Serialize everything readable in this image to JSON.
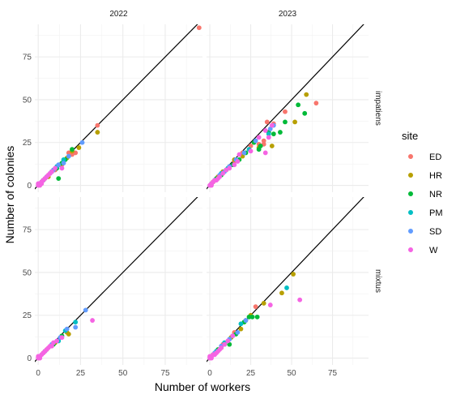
{
  "chart_data": {
    "type": "scatter",
    "xlabel": "Number of workers",
    "ylabel": "Number of colonies",
    "xlim": [
      -2,
      97
    ],
    "ylim": [
      -4,
      94
    ],
    "x_ticks": [
      0,
      25,
      50,
      75
    ],
    "y_ticks": [
      0,
      25,
      50,
      75
    ],
    "grid": true,
    "reference_line": "y = x",
    "facet_columns": [
      "2022",
      "2023"
    ],
    "facet_rows": [
      "impatiens",
      "mixtus"
    ],
    "legend": {
      "title": "site",
      "position": "right",
      "entries": [
        {
          "name": "ED",
          "color": "#F8766D"
        },
        {
          "name": "HR",
          "color": "#B79F00"
        },
        {
          "name": "NR",
          "color": "#00BA38"
        },
        {
          "name": "PM",
          "color": "#00BFC4"
        },
        {
          "name": "SD",
          "color": "#619CFF"
        },
        {
          "name": "W",
          "color": "#F564E3"
        }
      ]
    },
    "panels": [
      {
        "year": "2022",
        "species": "impatiens",
        "series": [
          {
            "name": "ED",
            "points": [
              [
                95,
                92
              ],
              [
                35,
                35
              ],
              [
                22,
                19
              ],
              [
                20,
                18
              ],
              [
                18,
                19
              ],
              [
                14,
                12
              ],
              [
                10,
                9
              ],
              [
                6,
                6
              ],
              [
                4,
                4
              ],
              [
                2,
                2
              ]
            ]
          },
          {
            "name": "HR",
            "points": [
              [
                35,
                31
              ],
              [
                24,
                22
              ],
              [
                20,
                20
              ],
              [
                17,
                16
              ],
              [
                13,
                12
              ],
              [
                9,
                9
              ],
              [
                6,
                5
              ],
              [
                3,
                3
              ],
              [
                1,
                1
              ]
            ]
          },
          {
            "name": "NR",
            "points": [
              [
                20,
                21
              ],
              [
                12,
                4
              ],
              [
                16,
                15
              ],
              [
                14,
                13
              ],
              [
                11,
                10
              ],
              [
                8,
                8
              ],
              [
                5,
                5
              ],
              [
                3,
                3
              ],
              [
                1,
                1
              ]
            ]
          },
          {
            "name": "PM",
            "points": [
              [
                15,
                15
              ],
              [
                11,
                11
              ],
              [
                8,
                8
              ],
              [
                5,
                5
              ],
              [
                3,
                3
              ],
              [
                1,
                1
              ]
            ]
          },
          {
            "name": "SD",
            "points": [
              [
                26,
                25
              ],
              [
                18,
                17
              ],
              [
                15,
                13
              ],
              [
                12,
                12
              ],
              [
                9,
                9
              ],
              [
                7,
                7
              ],
              [
                5,
                5
              ],
              [
                2,
                2
              ],
              [
                1,
                1
              ]
            ]
          },
          {
            "name": "W",
            "points": [
              [
                14,
                10
              ],
              [
                10,
                10
              ],
              [
                8,
                8
              ],
              [
                7,
                7
              ],
              [
                6,
                6
              ],
              [
                5,
                5
              ],
              [
                4,
                4
              ],
              [
                3,
                3
              ],
              [
                2,
                2
              ],
              [
                1,
                1
              ],
              [
                0,
                0
              ],
              [
                1,
                0
              ],
              [
                0,
                1
              ],
              [
                2,
                1
              ]
            ]
          }
        ]
      },
      {
        "year": "2023",
        "species": "impatiens",
        "series": [
          {
            "name": "ED",
            "points": [
              [
                65,
                48
              ],
              [
                46,
                43
              ],
              [
                39,
                36
              ],
              [
                35,
                37
              ],
              [
                33,
                26
              ],
              [
                33,
                24
              ],
              [
                30,
                24
              ],
              [
                25,
                23
              ],
              [
                20,
                19
              ],
              [
                15,
                14
              ],
              [
                10,
                9
              ],
              [
                5,
                5
              ],
              [
                2,
                2
              ]
            ]
          },
          {
            "name": "HR",
            "points": [
              [
                59,
                53
              ],
              [
                52,
                37
              ],
              [
                38,
                23
              ],
              [
                30,
                22
              ],
              [
                20,
                17
              ],
              [
                15,
                15
              ],
              [
                12,
                11
              ],
              [
                8,
                8
              ],
              [
                5,
                5
              ],
              [
                2,
                2
              ]
            ]
          },
          {
            "name": "NR",
            "points": [
              [
                54,
                47
              ],
              [
                58,
                42
              ],
              [
                46,
                37
              ],
              [
                43,
                31
              ],
              [
                39,
                30
              ],
              [
                36,
                31
              ],
              [
                31,
                23
              ],
              [
                30,
                21
              ],
              [
                27,
                25
              ],
              [
                22,
                19
              ],
              [
                18,
                15
              ],
              [
                14,
                12
              ],
              [
                10,
                9
              ],
              [
                7,
                6
              ],
              [
                4,
                4
              ],
              [
                1,
                1
              ]
            ]
          },
          {
            "name": "PM",
            "points": [
              [
                36,
                30
              ],
              [
                24,
                21
              ],
              [
                16,
                15
              ],
              [
                11,
                10
              ],
              [
                7,
                7
              ],
              [
                3,
                3
              ]
            ]
          },
          {
            "name": "SD",
            "points": [
              [
                39,
                35
              ],
              [
                37,
                33
              ],
              [
                28,
                26
              ],
              [
                21,
                19
              ],
              [
                16,
                15
              ],
              [
                12,
                11
              ],
              [
                9,
                8
              ],
              [
                6,
                6
              ],
              [
                3,
                3
              ]
            ]
          },
          {
            "name": "W",
            "points": [
              [
                38,
                35
              ],
              [
                34,
                32
              ],
              [
                36,
                28
              ],
              [
                34,
                19
              ],
              [
                30,
                28
              ],
              [
                25,
                20
              ],
              [
                18,
                18
              ],
              [
                17,
                14
              ],
              [
                15,
                12
              ],
              [
                12,
                10
              ],
              [
                10,
                9
              ],
              [
                8,
                7
              ],
              [
                6,
                5
              ],
              [
                5,
                4
              ],
              [
                4,
                3
              ],
              [
                3,
                3
              ],
              [
                2,
                2
              ],
              [
                1,
                1
              ],
              [
                0,
                0
              ],
              [
                1,
                0
              ]
            ]
          }
        ]
      },
      {
        "year": "2022",
        "species": "mixtus",
        "series": [
          {
            "name": "ED",
            "points": [
              [
                3,
                3
              ],
              [
                1,
                1
              ]
            ]
          },
          {
            "name": "HR",
            "points": [
              [
                18,
                14
              ],
              [
                17,
                15
              ],
              [
                10,
                9
              ],
              [
                5,
                5
              ]
            ]
          },
          {
            "name": "NR",
            "points": [
              [
                14,
                13
              ],
              [
                9,
                8
              ],
              [
                4,
                4
              ]
            ]
          },
          {
            "name": "PM",
            "points": [
              [
                22,
                21
              ],
              [
                16,
                16
              ],
              [
                12,
                10
              ]
            ]
          },
          {
            "name": "SD",
            "points": [
              [
                28,
                28
              ],
              [
                22,
                18
              ],
              [
                17,
                17
              ],
              [
                13,
                12
              ],
              [
                8,
                8
              ],
              [
                4,
                4
              ]
            ]
          },
          {
            "name": "W",
            "points": [
              [
                32,
                22
              ],
              [
                14,
                12
              ],
              [
                11,
                10
              ],
              [
                9,
                9
              ],
              [
                8,
                7
              ],
              [
                7,
                7
              ],
              [
                6,
                6
              ],
              [
                5,
                5
              ],
              [
                4,
                4
              ],
              [
                3,
                3
              ],
              [
                2,
                2
              ],
              [
                1,
                1
              ],
              [
                0,
                0
              ],
              [
                1,
                0
              ],
              [
                0,
                1
              ]
            ]
          }
        ]
      },
      {
        "year": "2023",
        "species": "mixtus",
        "series": [
          {
            "name": "ED",
            "points": [
              [
                28,
                30
              ],
              [
                22,
                22
              ],
              [
                15,
                15
              ],
              [
                8,
                8
              ],
              [
                3,
                3
              ]
            ]
          },
          {
            "name": "HR",
            "points": [
              [
                51,
                49
              ],
              [
                44,
                38
              ],
              [
                33,
                32
              ],
              [
                25,
                25
              ],
              [
                19,
                17
              ],
              [
                13,
                12
              ],
              [
                7,
                6
              ],
              [
                2,
                2
              ]
            ]
          },
          {
            "name": "NR",
            "points": [
              [
                29,
                24
              ],
              [
                26,
                24
              ],
              [
                24,
                24
              ],
              [
                21,
                21
              ],
              [
                16,
                14
              ],
              [
                12,
                8
              ],
              [
                9,
                8
              ],
              [
                5,
                5
              ],
              [
                2,
                2
              ]
            ]
          },
          {
            "name": "PM",
            "points": [
              [
                47,
                41
              ],
              [
                19,
                20
              ],
              [
                14,
                13
              ],
              [
                9,
                9
              ],
              [
                4,
                4
              ]
            ]
          },
          {
            "name": "SD",
            "points": [
              [
                22,
                22
              ],
              [
                17,
                15
              ],
              [
                12,
                11
              ],
              [
                7,
                7
              ],
              [
                3,
                3
              ]
            ]
          },
          {
            "name": "W",
            "points": [
              [
                55,
                34
              ],
              [
                37,
                31
              ],
              [
                14,
                13
              ],
              [
                11,
                10
              ],
              [
                9,
                8
              ],
              [
                7,
                6
              ],
              [
                6,
                5
              ],
              [
                5,
                4
              ],
              [
                4,
                3
              ],
              [
                3,
                2
              ],
              [
                2,
                2
              ],
              [
                1,
                1
              ],
              [
                0,
                0
              ],
              [
                1,
                0
              ],
              [
                0,
                1
              ]
            ]
          }
        ]
      }
    ]
  }
}
